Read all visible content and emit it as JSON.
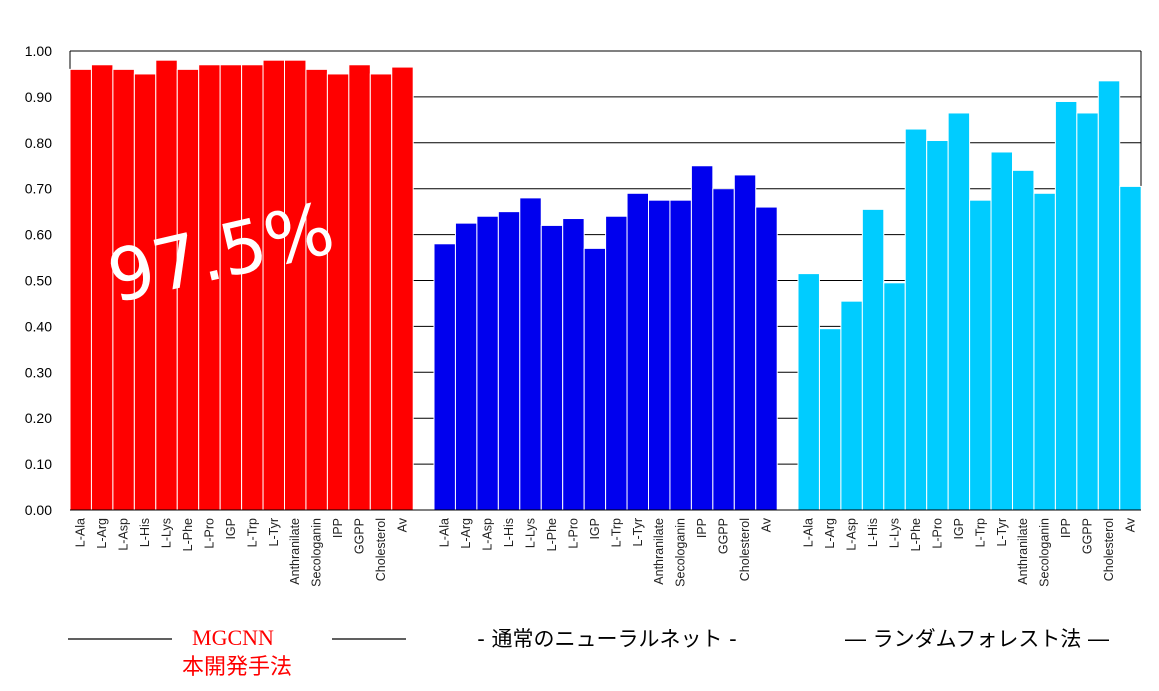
{
  "chart_data": {
    "type": "bar",
    "categories": [
      "L-Ala",
      "L-Arg",
      "L-Asp",
      "L-His",
      "L-Lys",
      "L-Phe",
      "L-Pro",
      "IGP",
      "L-Trp",
      "L-Tyr",
      "Anthranilate",
      "Secologanin",
      "IPP",
      "GGPP",
      "Cholesterol",
      "Av"
    ],
    "yticks": [
      "0.00",
      "0.10",
      "0.20",
      "0.30",
      "0.40",
      "0.50",
      "0.60",
      "0.70",
      "0.80",
      "0.90",
      "1.00"
    ],
    "ylim": [
      0,
      1.0
    ],
    "grid": true,
    "series": [
      {
        "name": "MGCNN",
        "subtitle": "本開発手法",
        "color": "#ff0000",
        "values": [
          0.96,
          0.97,
          0.96,
          0.95,
          0.98,
          0.96,
          0.97,
          0.97,
          0.97,
          0.98,
          0.98,
          0.96,
          0.95,
          0.97,
          0.95,
          0.965
        ]
      },
      {
        "name": "- 通常のニューラルネット -",
        "color": "#0000ee",
        "values": [
          0.58,
          0.625,
          0.64,
          0.65,
          0.68,
          0.62,
          0.635,
          0.57,
          0.64,
          0.69,
          0.675,
          0.675,
          0.75,
          0.7,
          0.73,
          0.66
        ]
      },
      {
        "name": "― ランダムフォレスト法 ―",
        "color": "#00ccff",
        "values": [
          0.515,
          0.395,
          0.455,
          0.655,
          0.495,
          0.83,
          0.805,
          0.865,
          0.675,
          0.78,
          0.74,
          0.69,
          0.89,
          0.865,
          0.935,
          0.705
        ]
      }
    ],
    "annotation": "97.5%"
  }
}
